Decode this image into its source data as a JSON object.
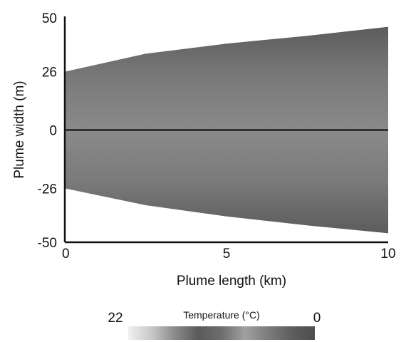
{
  "chart_data": {
    "type": "heatmap",
    "title": "",
    "xlabel": "Plume length (km)",
    "ylabel": "Plume width (m)",
    "xlim": [
      0,
      10
    ],
    "ylim": [
      -50,
      50
    ],
    "x_ticks": [
      0,
      5,
      10
    ],
    "y_ticks": [
      50,
      26,
      0,
      -26,
      -50
    ],
    "x_tick_labels": [
      "0",
      "5",
      "10"
    ],
    "y_tick_labels": [
      "50",
      "26",
      "0",
      "-26",
      "-50"
    ],
    "grid": false,
    "plume_upper_boundary": {
      "x": [
        0,
        2.5,
        5,
        7.5,
        10
      ],
      "y": [
        26,
        34,
        38.5,
        42,
        46
      ]
    },
    "plume_lower_boundary": {
      "x": [
        0,
        2.5,
        5,
        7.5,
        10
      ],
      "y": [
        -26,
        -33.5,
        -38.5,
        -42.5,
        -46
      ]
    },
    "centerline": {
      "x": [
        0,
        10
      ],
      "y": [
        0,
        0
      ]
    },
    "colorbar": {
      "title": "Temperature (°C)",
      "min_label": "22",
      "max_label": "0",
      "colors": [
        "#f1f1f1",
        "#c8c8c8",
        "#8a8a8a",
        "#5a5a5a",
        "#6e6e6e",
        "#a0a0a0",
        "#7c7c7c",
        "#5e5e5e",
        "#4e4e4e"
      ]
    }
  }
}
